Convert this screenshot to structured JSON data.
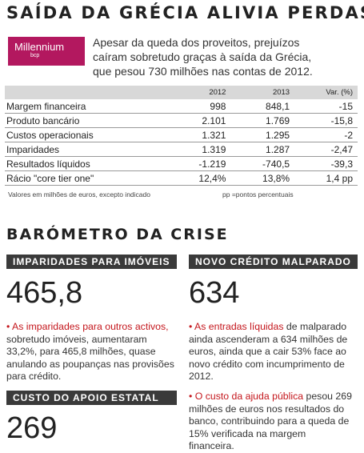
{
  "header": {
    "title": "SAÍDA DA GRÉCIA ALIVIA PERDAS",
    "logo": "Millennium",
    "logo_sub": "bcp",
    "intro": [
      "Apesar da queda dos proveitos, prejuízos",
      "caíram sobretudo graças à saída da Grécia,",
      "que pesou 730 milhões nas contas de 2012."
    ]
  },
  "table": {
    "columns": [
      "2012",
      "2013",
      "Var. (%)"
    ],
    "rows": [
      [
        "Margem financeira",
        "998",
        "848,1",
        "-15"
      ],
      [
        "Produto bancário",
        "2.101",
        "1.769",
        "-15,8"
      ],
      [
        "Custos operacionais",
        "1.321",
        "1.295",
        "-2"
      ],
      [
        "Imparidades",
        "1.319",
        "1.287",
        "-2,47"
      ],
      [
        "Resultados líquidos",
        "-1.219",
        "-740,5",
        "-39,3"
      ],
      [
        "Rácio \"core tier one\"",
        "12,4%",
        "13,8%",
        "1,4 pp"
      ]
    ],
    "note": "Valores em milhões de euros, excepto indicado",
    "note2": "pp =pontos percentuais"
  },
  "section": {
    "title": "BARÓMETRO DA CRISE"
  },
  "boxes": [
    {
      "label": "IMPARIDADES PARA IMÓVEIS",
      "figure": "465,8",
      "lead": "• As imparidades para outros activos,",
      "text": "sobretudo imóveis, aumentaram 33,2%, para 465,8 milhões, quase anulando as poupanças nas provisões para crédito."
    },
    {
      "label": "NOVO CRÉDITO MALPARADO",
      "figure": "634",
      "lead": "• As entradas líquidas",
      "text": "de malparado ainda ascenderam a 634 milhões de euros, ainda que a cair 53% face ao novo crédito com incumprimento de 2012."
    },
    {
      "label": "CUSTO DO APOIO ESTATAL",
      "figure": "269",
      "lead": "• O custo da ajuda pública",
      "text": "pesou 269 milhões de euros nos resultados do banco, contribuindo para a queda de 15% verificada na margem financeira."
    }
  ]
}
